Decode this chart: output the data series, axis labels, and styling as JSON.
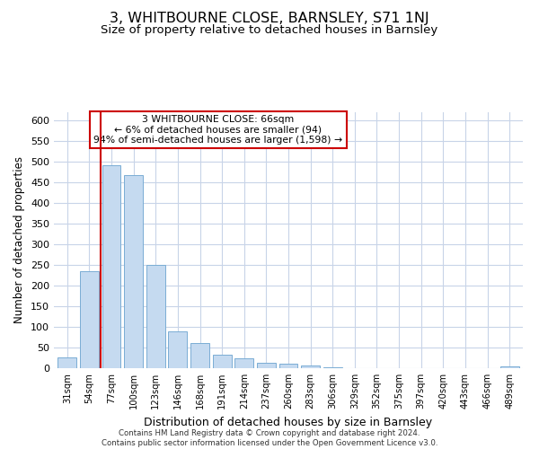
{
  "title": "3, WHITBOURNE CLOSE, BARNSLEY, S71 1NJ",
  "subtitle": "Size of property relative to detached houses in Barnsley",
  "xlabel": "Distribution of detached houses by size in Barnsley",
  "ylabel": "Number of detached properties",
  "bin_labels": [
    "31sqm",
    "54sqm",
    "77sqm",
    "100sqm",
    "123sqm",
    "146sqm",
    "168sqm",
    "191sqm",
    "214sqm",
    "237sqm",
    "260sqm",
    "283sqm",
    "306sqm",
    "329sqm",
    "352sqm",
    "375sqm",
    "397sqm",
    "420sqm",
    "443sqm",
    "466sqm",
    "489sqm"
  ],
  "bar_values": [
    27,
    235,
    492,
    468,
    250,
    90,
    62,
    33,
    24,
    14,
    10,
    7,
    2,
    1,
    1,
    0,
    0,
    0,
    0,
    0,
    4
  ],
  "bar_color": "#c5daf0",
  "bar_edge_color": "#7aadd4",
  "marker_line_color": "#cc0000",
  "annotation_line1": "3 WHITBOURNE CLOSE: 66sqm",
  "annotation_line2": "← 6% of detached houses are smaller (94)",
  "annotation_line3": "94% of semi-detached houses are larger (1,598) →",
  "annotation_box_edge": "#cc0000",
  "ylim": [
    0,
    620
  ],
  "yticks": [
    0,
    50,
    100,
    150,
    200,
    250,
    300,
    350,
    400,
    450,
    500,
    550,
    600
  ],
  "footer_line1": "Contains HM Land Registry data © Crown copyright and database right 2024.",
  "footer_line2": "Contains public sector information licensed under the Open Government Licence v3.0.",
  "background_color": "#ffffff",
  "grid_color": "#c8d4e8"
}
